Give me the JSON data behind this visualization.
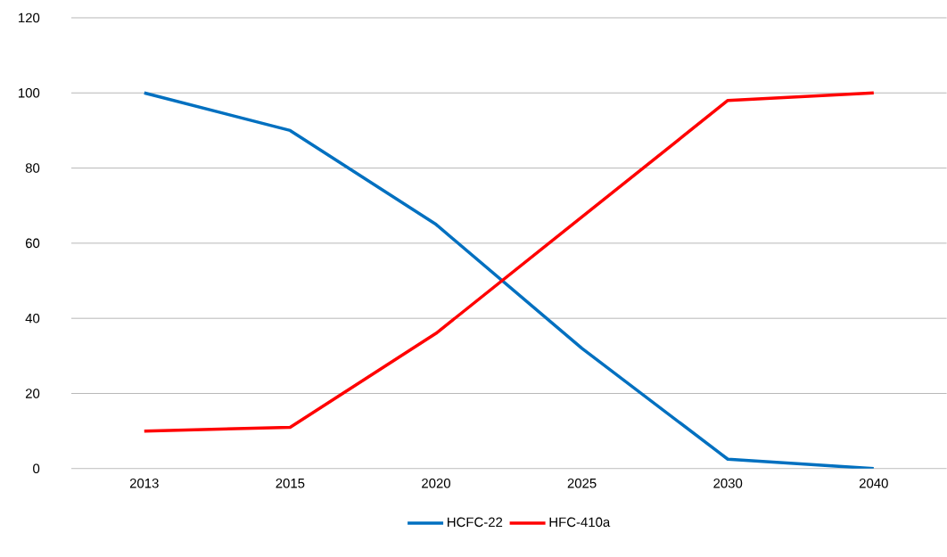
{
  "chart_data": {
    "type": "line",
    "categories": [
      "2013",
      "2015",
      "2020",
      "2025",
      "2030",
      "2040"
    ],
    "series": [
      {
        "name": "HCFC-22",
        "color": "#0070c0",
        "values": [
          100,
          90,
          65,
          32,
          2.5,
          0
        ]
      },
      {
        "name": "HFC-410a",
        "color": "#ff0000",
        "values": [
          10,
          11,
          36,
          67,
          98,
          100
        ]
      }
    ],
    "ylim": [
      0,
      120
    ],
    "yticks": [
      0,
      20,
      40,
      60,
      80,
      100,
      120
    ],
    "grid": "y",
    "legend": "bottom",
    "marker": "none",
    "line_style": "solid"
  }
}
